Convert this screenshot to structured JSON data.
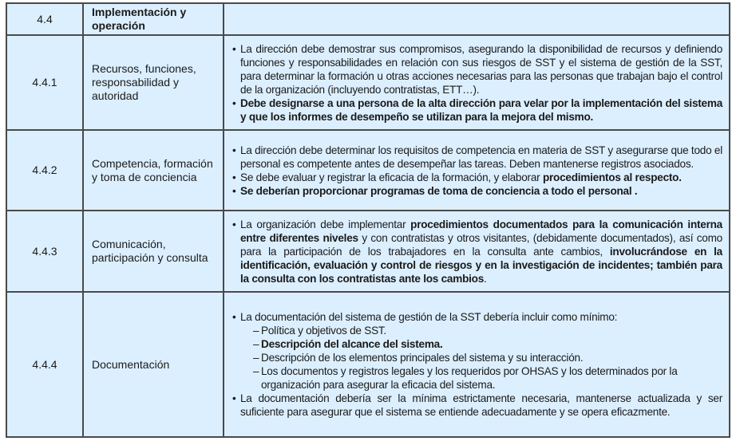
{
  "rows": [
    {
      "code": "4.4",
      "title": "Implementación y operación",
      "header": true,
      "items": []
    },
    {
      "code": "4.4.1",
      "title": "Recursos, funciones, responsabilidad y autoridad",
      "items": [
        {
          "type": "bullet",
          "segments": [
            {
              "t": "La dirección debe demostrar sus compromisos, asegurando la disponibilidad de recursos y definiendo funciones y responsabilidades en relación con sus riesgos de SST y el sistema de gestión de la SST, para determinar la formación u otras acciones necesarias para las personas que trabajan bajo el control de la organización (incluyendo contratistas, ETT…).",
              "b": false
            }
          ]
        },
        {
          "type": "bullet",
          "segments": [
            {
              "t": "Debe designarse a una persona de la alta dirección para velar por la implementación del sistema y que los informes de desempeño se utilizan para la mejora del mismo.",
              "b": true
            }
          ]
        }
      ]
    },
    {
      "code": "4.4.2",
      "title": "Competencia, formación y toma de conciencia",
      "items": [
        {
          "type": "bullet",
          "segments": [
            {
              "t": "La dirección debe determinar los requisitos de competencia en materia de SST y asegurarse que todo el personal es competente antes de desempeñar las tareas. Deben mantenerse registros asociados.",
              "b": false
            }
          ]
        },
        {
          "type": "bullet",
          "segments": [
            {
              "t": "Se debe evaluar y registrar la eficacia de la formación, y elaborar ",
              "b": false
            },
            {
              "t": "procedimientos al respecto.",
              "b": true
            }
          ]
        },
        {
          "type": "bullet",
          "segments": [
            {
              "t": "Se deberían proporcionar programas de toma de conciencia a todo el personal .",
              "b": true
            }
          ]
        }
      ]
    },
    {
      "code": "4.4.3",
      "title": "Comunicación, participación y consulta",
      "items": [
        {
          "type": "bullet",
          "segments": [
            {
              "t": "La organización debe implementar ",
              "b": false
            },
            {
              "t": "procedimientos documentados para la comunicación interna entre diferentes niveles",
              "b": true
            },
            {
              "t": " y con contratistas y otros visitantes, (debidamente documentados), así como para la participación de los trabajadores en la consulta ante cambios, ",
              "b": false
            },
            {
              "t": "involucrándose en la identificación, evaluación y control de riesgos y en la investigación de incidentes; también para la consulta con los contratistas ante los cambios",
              "b": true
            },
            {
              "t": ".",
              "b": false
            }
          ]
        }
      ]
    },
    {
      "code": "4.4.4",
      "title": "Documentación",
      "items": [
        {
          "type": "bullet",
          "segments": [
            {
              "t": "La documentación del sistema de gestión de la SST debería incluir como mínimo:",
              "b": false
            }
          ]
        },
        {
          "type": "sub",
          "segments": [
            {
              "t": "Política y objetivos de SST.",
              "b": false
            }
          ]
        },
        {
          "type": "sub",
          "segments": [
            {
              "t": "Descripción del alcance del sistema.",
              "b": true
            }
          ]
        },
        {
          "type": "sub",
          "segments": [
            {
              "t": "Descripción de los elementos principales del sistema y su interacción.",
              "b": false
            }
          ]
        },
        {
          "type": "sub",
          "segments": [
            {
              "t": "Los documentos y registros legales y los requeridos por OHSAS y los determinados por la organización para asegurar la eficacia del sistema.",
              "b": false
            }
          ]
        },
        {
          "type": "bullet",
          "segments": [
            {
              "t": "La documentación debería ser la mínima estrictamente necesaria, mantenerse actualizada y ser suficiente para asegurar que el sistema se entiende adecuadamente y se opera eficazmente.",
              "b": false
            }
          ]
        }
      ]
    }
  ],
  "colors": {
    "cell_background": "#dcefff",
    "border": "#4a4a4a"
  }
}
